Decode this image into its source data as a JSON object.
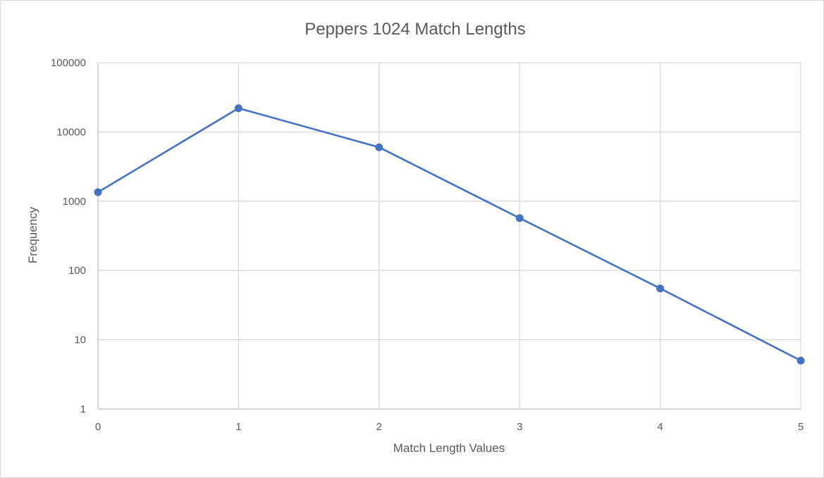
{
  "chart_data": {
    "type": "line",
    "title": "Peppers 1024 Match Lengths",
    "xlabel": "Match Length Values",
    "ylabel": "Frequency",
    "x": [
      0,
      1,
      2,
      3,
      4,
      5
    ],
    "x_tick_labels": [
      "0",
      "1",
      "2",
      "3",
      "4",
      "5"
    ],
    "y_scale": "log",
    "ylim": [
      1,
      100000
    ],
    "y_tick_labels": [
      "1",
      "10",
      "100",
      "1000",
      "10000",
      "100000"
    ],
    "grid": true,
    "legend": "none",
    "series": [
      {
        "values": [
          1350,
          22000,
          6000,
          570,
          55,
          5
        ],
        "color": "#4472c4"
      }
    ]
  }
}
